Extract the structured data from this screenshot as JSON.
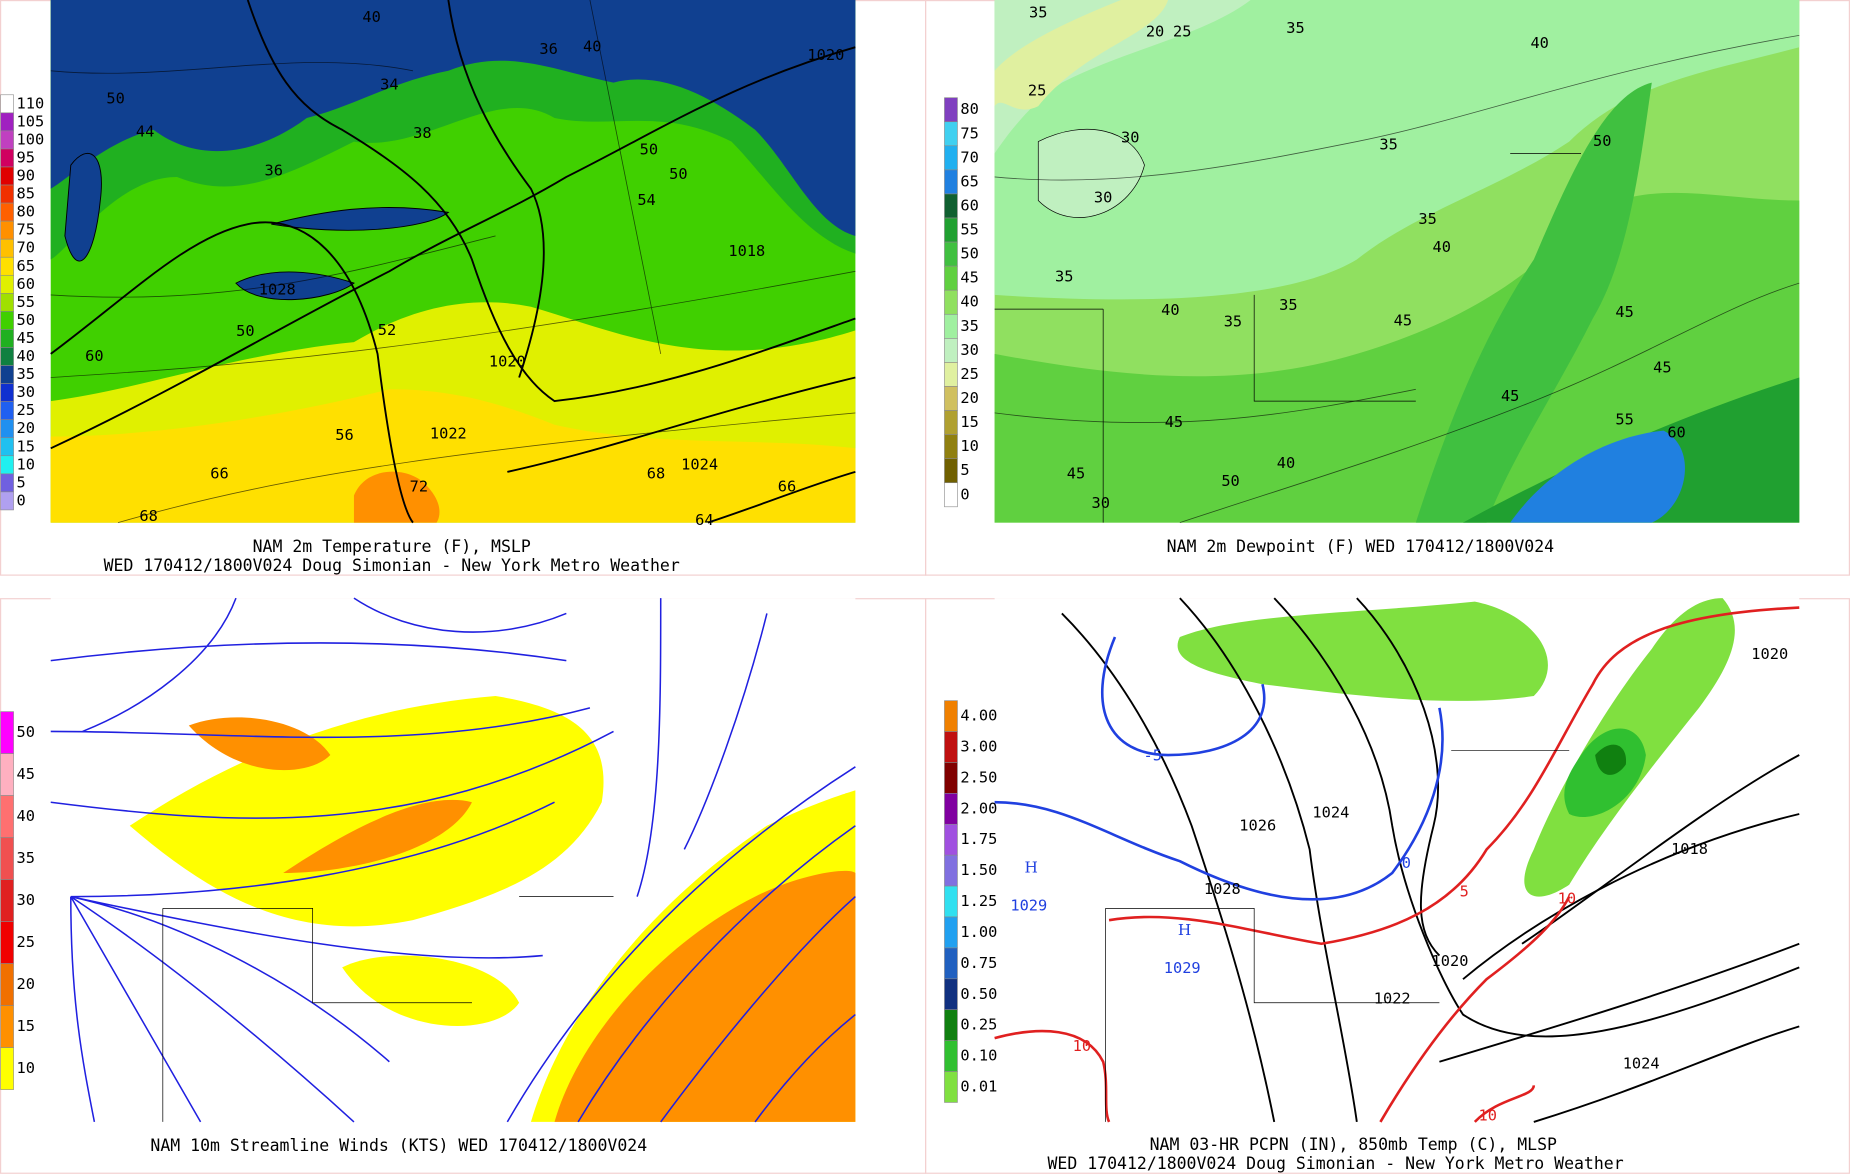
{
  "panels": [
    {
      "caption": [
        "NAM 2m Temperature (F), MSLP",
        "WED 170412/1800V024 Doug Simonian - New York Metro Weather"
      ],
      "colorbar": {
        "labels": [
          "110",
          "105",
          "100",
          "95",
          "90",
          "85",
          "80",
          "75",
          "70",
          "65",
          "60",
          "55",
          "50",
          "45",
          "40",
          "35",
          "30",
          "25",
          "20",
          "15",
          "10",
          "5",
          "0"
        ],
        "colors": [
          "#ffffff",
          "#a020c0",
          "#c040c0",
          "#d00060",
          "#e00000",
          "#f03000",
          "#ff6000",
          "#ff9000",
          "#ffc000",
          "#ffe000",
          "#e0f000",
          "#a0e000",
          "#40d000",
          "#20b020",
          "#108040",
          "#104090",
          "#1030d0",
          "#2060f0",
          "#2090f0",
          "#20c0f0",
          "#20f0f0",
          "#7060e0",
          "#b0a0f0"
        ]
      },
      "labels": [
        "40",
        "36",
        "40",
        "1020",
        "34",
        "50",
        "44",
        "36",
        "38",
        "50",
        "50",
        "54",
        "1018",
        "1028",
        "50",
        "52",
        "60",
        "1020",
        "1022",
        "56",
        "66",
        "68",
        "1024",
        "72",
        "66",
        "68",
        "64"
      ]
    },
    {
      "caption": [
        "NAM 2m Dewpoint (F)  WED 170412/1800V024"
      ],
      "colorbar": {
        "labels": [
          "80",
          "75",
          "70",
          "65",
          "60",
          "55",
          "50",
          "45",
          "40",
          "35",
          "30",
          "25",
          "20",
          "15",
          "10",
          "5",
          "0"
        ],
        "colors": [
          "#8040c0",
          "#40d0f0",
          "#20b0f0",
          "#2080e0",
          "#106030",
          "#20a030",
          "#40c040",
          "#60d040",
          "#90e060",
          "#a0f0a0",
          "#c0f0c0",
          "#e0f0a0",
          "#d0c060",
          "#b0a030",
          "#908010",
          "#706000",
          "#ffffff"
        ]
      },
      "labels": [
        "35",
        "20",
        "25",
        "35",
        "40",
        "25",
        "30",
        "35",
        "50",
        "30",
        "35",
        "40",
        "35",
        "40",
        "35",
        "35",
        "45",
        "45",
        "45",
        "45",
        "55",
        "60",
        "45",
        "40",
        "50",
        "45",
        "30"
      ]
    },
    {
      "caption": [
        "NAM 10m Streamline Winds (KTS)  WED 170412/1800V024"
      ],
      "colorbar": {
        "labels": [
          "50",
          "45",
          "40",
          "35",
          "30",
          "25",
          "20",
          "15",
          "10"
        ],
        "colors": [
          "#ff00ff",
          "#ffb0c0",
          "#ff7070",
          "#f05050",
          "#e02020",
          "#f00000",
          "#f07000",
          "#ff9000",
          "#ffff00"
        ]
      },
      "labels": []
    },
    {
      "caption": [
        "NAM 03-HR PCPN (IN), 850mb Temp (C), MLSP",
        "WED 170412/1800V024 Doug Simonian - New York Metro Weather"
      ],
      "colorbar": {
        "labels": [
          "4.00",
          "3.00",
          "2.50",
          "2.00",
          "1.75",
          "1.50",
          "1.25",
          "1.00",
          "0.75",
          "0.50",
          "0.25",
          "0.10",
          "0.01"
        ],
        "colors": [
          "#f08000",
          "#c01010",
          "#800000",
          "#8000a0",
          "#a050e0",
          "#8070e0",
          "#30e0f0",
          "#20a0f0",
          "#2060c0",
          "#103080",
          "#108010",
          "#30c030",
          "#80e040"
        ]
      },
      "labels": [
        "-5",
        "1026",
        "1024",
        "1018",
        "0",
        "1028",
        "5",
        "10",
        "H",
        "1029",
        "H",
        "1029",
        "1020",
        "1022",
        "10",
        "1024",
        "10",
        "1020"
      ]
    }
  ]
}
